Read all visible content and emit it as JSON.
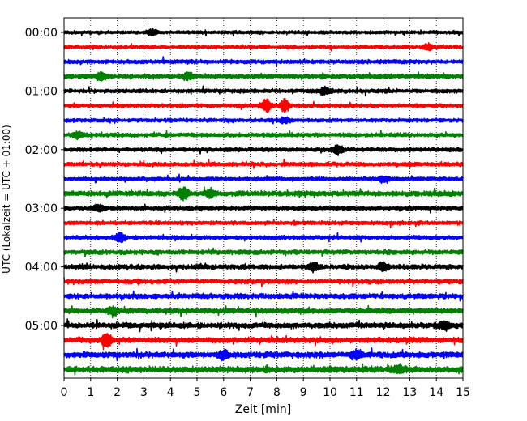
{
  "chart_data": {
    "type": "line",
    "title": "",
    "xlabel": "Zeit  [min]",
    "ylabel": "UTC (Lokalzeit = UTC + 01:00)",
    "xlim": [
      0,
      15
    ],
    "x_ticks": [
      "0",
      "1",
      "2",
      "3",
      "4",
      "5",
      "6",
      "7",
      "8",
      "9",
      "10",
      "11",
      "12",
      "13",
      "14",
      "15"
    ],
    "y_ticks": [
      "00:00",
      "01:00",
      "02:00",
      "03:00",
      "04:00",
      "05:00"
    ],
    "grid": "vertical dotted",
    "colors": [
      "#000000",
      "#ff0000",
      "#0000ff",
      "#008000"
    ],
    "traces_per_hour": 4,
    "trace_minutes": 15,
    "series": [
      {
        "start": "00:00",
        "color": "#000000",
        "amplitude": 0.18,
        "events": [
          {
            "t": 3.3,
            "a": 0.35
          }
        ]
      },
      {
        "start": "00:15",
        "color": "#ff0000",
        "amplitude": 0.18,
        "events": [
          {
            "t": 13.7,
            "a": 0.4
          }
        ]
      },
      {
        "start": "00:30",
        "color": "#0000ff",
        "amplitude": 0.22,
        "events": []
      },
      {
        "start": "00:45",
        "color": "#008000",
        "amplitude": 0.25,
        "events": [
          {
            "t": 1.4,
            "a": 0.45
          },
          {
            "t": 4.7,
            "a": 0.4
          }
        ]
      },
      {
        "start": "01:00",
        "color": "#000000",
        "amplitude": 0.22,
        "events": [
          {
            "t": 9.8,
            "a": 0.45
          }
        ]
      },
      {
        "start": "01:15",
        "color": "#ff0000",
        "amplitude": 0.2,
        "events": [
          {
            "t": 7.6,
            "a": 0.8
          },
          {
            "t": 8.3,
            "a": 0.75
          }
        ]
      },
      {
        "start": "01:30",
        "color": "#0000ff",
        "amplitude": 0.2,
        "events": [
          {
            "t": 8.3,
            "a": 0.35
          }
        ]
      },
      {
        "start": "01:45",
        "color": "#008000",
        "amplitude": 0.22,
        "events": [
          {
            "t": 0.5,
            "a": 0.4
          }
        ]
      },
      {
        "start": "02:00",
        "color": "#000000",
        "amplitude": 0.22,
        "events": [
          {
            "t": 10.3,
            "a": 0.5
          }
        ]
      },
      {
        "start": "02:15",
        "color": "#ff0000",
        "amplitude": 0.22,
        "events": []
      },
      {
        "start": "02:30",
        "color": "#0000ff",
        "amplitude": 0.22,
        "events": [
          {
            "t": 12.0,
            "a": 0.35
          }
        ]
      },
      {
        "start": "02:45",
        "color": "#008000",
        "amplitude": 0.28,
        "events": [
          {
            "t": 4.5,
            "a": 0.7
          },
          {
            "t": 5.5,
            "a": 0.55
          }
        ]
      },
      {
        "start": "03:00",
        "color": "#000000",
        "amplitude": 0.22,
        "events": [
          {
            "t": 1.3,
            "a": 0.45
          }
        ]
      },
      {
        "start": "03:15",
        "color": "#ff0000",
        "amplitude": 0.22,
        "events": []
      },
      {
        "start": "03:30",
        "color": "#0000ff",
        "amplitude": 0.22,
        "events": [
          {
            "t": 2.1,
            "a": 0.6
          }
        ]
      },
      {
        "start": "03:45",
        "color": "#008000",
        "amplitude": 0.25,
        "events": []
      },
      {
        "start": "04:00",
        "color": "#000000",
        "amplitude": 0.26,
        "events": [
          {
            "t": 9.4,
            "a": 0.55
          },
          {
            "t": 12.0,
            "a": 0.5
          }
        ]
      },
      {
        "start": "04:15",
        "color": "#ff0000",
        "amplitude": 0.26,
        "events": []
      },
      {
        "start": "04:30",
        "color": "#0000ff",
        "amplitude": 0.28,
        "events": []
      },
      {
        "start": "04:45",
        "color": "#008000",
        "amplitude": 0.28,
        "events": [
          {
            "t": 1.8,
            "a": 0.45
          }
        ]
      },
      {
        "start": "05:00",
        "color": "#000000",
        "amplitude": 0.3,
        "events": [
          {
            "t": 14.3,
            "a": 0.5
          }
        ]
      },
      {
        "start": "05:15",
        "color": "#ff0000",
        "amplitude": 0.3,
        "events": [
          {
            "t": 1.6,
            "a": 0.8
          }
        ]
      },
      {
        "start": "05:30",
        "color": "#0000ff",
        "amplitude": 0.32,
        "events": [
          {
            "t": 6.0,
            "a": 0.55
          },
          {
            "t": 11.0,
            "a": 0.6
          }
        ]
      },
      {
        "start": "05:45",
        "color": "#008000",
        "amplitude": 0.34,
        "events": [
          {
            "t": 12.6,
            "a": 0.5
          }
        ]
      }
    ]
  }
}
